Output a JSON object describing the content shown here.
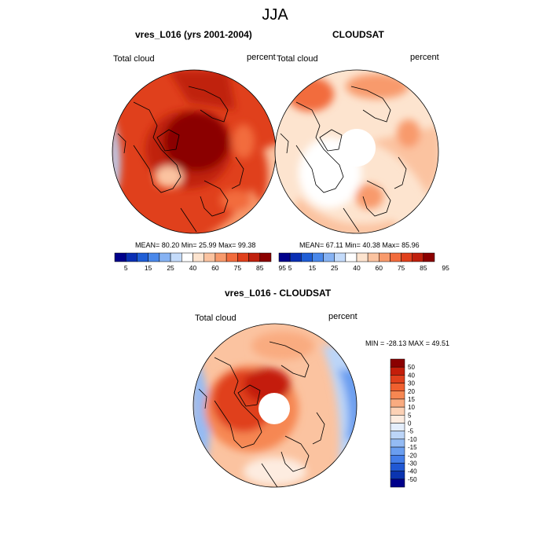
{
  "figure": {
    "title": "JJA",
    "colors": {
      "land": "#8b0000",
      "ocean_edge": "#4f86e8",
      "coast": "#000000"
    }
  },
  "panels": [
    {
      "id": "model",
      "title": "vres_L016 (yrs 2001-2004)",
      "left_label": "Total cloud",
      "right_label": "percent",
      "stats": "MEAN= 80.20  Min= 25.99  Max= 99.38",
      "fill_icon": "orange-red-cloud-field",
      "colorbar": {
        "colors": [
          "#00008b",
          "#0a2fb4",
          "#1f5ed6",
          "#4a88ea",
          "#86b2f3",
          "#c4dbfa",
          "#ffffff",
          "#fde4cf",
          "#fbc3a0",
          "#f89a6c",
          "#f26c3d",
          "#e0401c",
          "#c0200d",
          "#8b0000"
        ],
        "labels": [
          "5",
          "15",
          "25",
          "40",
          "60",
          "75",
          "85",
          "95"
        ]
      }
    },
    {
      "id": "obs",
      "title": "CLOUDSAT",
      "left_label": "Total cloud",
      "right_label": "percent",
      "stats": "MEAN=  67.11  Min=  40.38  Max=  85.96",
      "fill_icon": "pale-cloud-field-with-polar-hole",
      "colorbar": {
        "colors": [
          "#00008b",
          "#0a2fb4",
          "#1f5ed6",
          "#4a88ea",
          "#86b2f3",
          "#c4dbfa",
          "#ffffff",
          "#fde4cf",
          "#fbc3a0",
          "#f89a6c",
          "#f26c3d",
          "#e0401c",
          "#c0200d",
          "#8b0000"
        ],
        "labels": [
          "5",
          "15",
          "25",
          "40",
          "60",
          "75",
          "85",
          "95"
        ]
      }
    },
    {
      "id": "diff",
      "title": "vres_L016 - CLOUDSAT",
      "left_label": "Total cloud",
      "right_label": "percent",
      "stats": "MIN = -28.13 MAX =  49.51",
      "fill_icon": "difference-field-with-polar-hole",
      "colorbar": {
        "colors": [
          "#8b0000",
          "#c41e0a",
          "#e0401c",
          "#f0602f",
          "#f68752",
          "#f9ab80",
          "#fcd1b5",
          "#fdece0",
          "#e4eefc",
          "#bcd5f8",
          "#94bbf4",
          "#6a9ef0",
          "#437de9",
          "#2058d4",
          "#0b34b0",
          "#00008b"
        ],
        "labels": [
          "50",
          "40",
          "30",
          "20",
          "15",
          "10",
          "5",
          "0",
          "-5",
          "-10",
          "-15",
          "-20",
          "-30",
          "-40",
          "-50"
        ]
      }
    }
  ]
}
